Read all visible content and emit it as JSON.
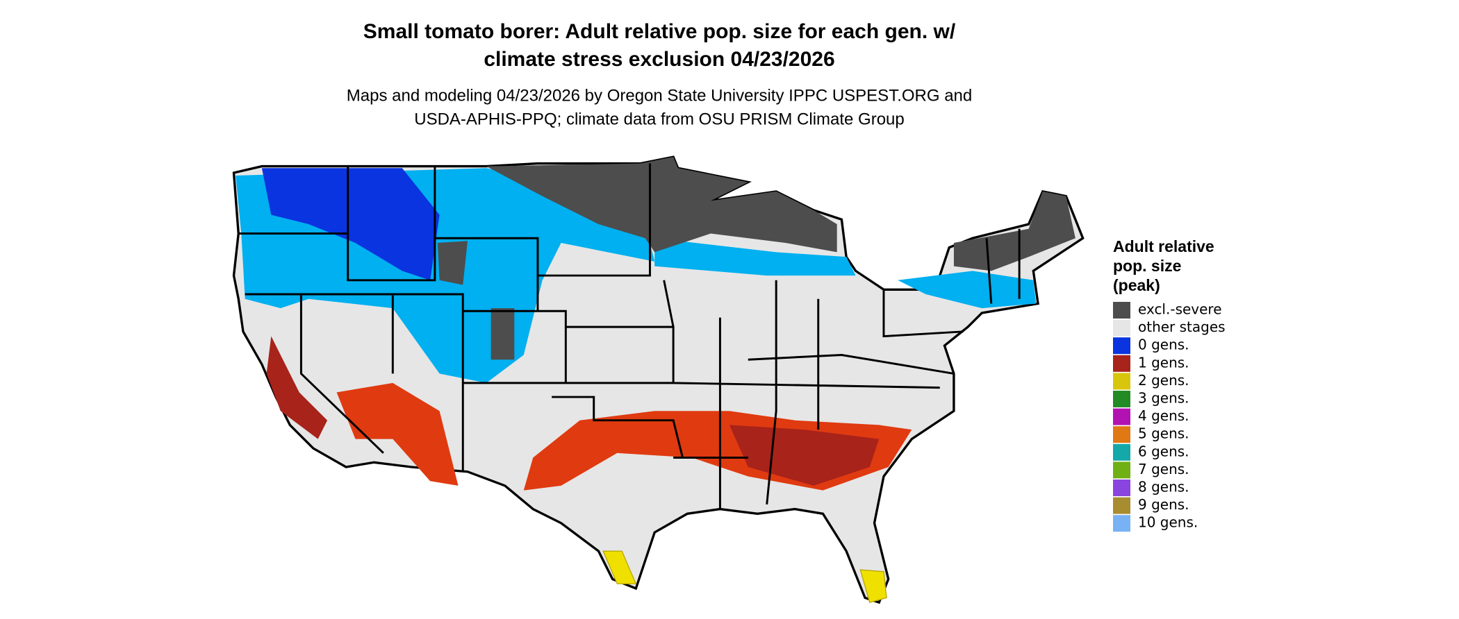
{
  "header": {
    "title_lines": [
      "Small tomato borer: Adult relative pop. size for each gen. w/",
      "climate stress exclusion 04/23/2026"
    ],
    "subtitle_lines": [
      "Maps and modeling 04/23/2026 by Oregon State University IPPC USPEST.ORG and",
      "USDA-APHIS-PPQ; climate data from OSU PRISM Climate Group"
    ]
  },
  "legend": {
    "title_lines": [
      "Adult relative",
      "pop. size",
      "(peak)"
    ],
    "items": [
      {
        "label": "excl.-severe",
        "color": "#4d4d4d"
      },
      {
        "label": "other stages",
        "color": "#e6e6e6"
      },
      {
        "label": "0 gens.",
        "color": "#0a34e0"
      },
      {
        "label": "1 gens.",
        "color": "#a8231a"
      },
      {
        "label": "2 gens.",
        "color": "#d8c60c"
      },
      {
        "label": "3 gens.",
        "color": "#238b23"
      },
      {
        "label": "4 gens.",
        "color": "#b312b3"
      },
      {
        "label": "5 gens.",
        "color": "#e07814"
      },
      {
        "label": "6 gens.",
        "color": "#14a8a8"
      },
      {
        "label": "7 gens.",
        "color": "#70b014"
      },
      {
        "label": "8 gens.",
        "color": "#8a44e0"
      },
      {
        "label": "9 gens.",
        "color": "#a88c30"
      },
      {
        "label": "10 gens.",
        "color": "#78b2f5"
      }
    ]
  }
}
